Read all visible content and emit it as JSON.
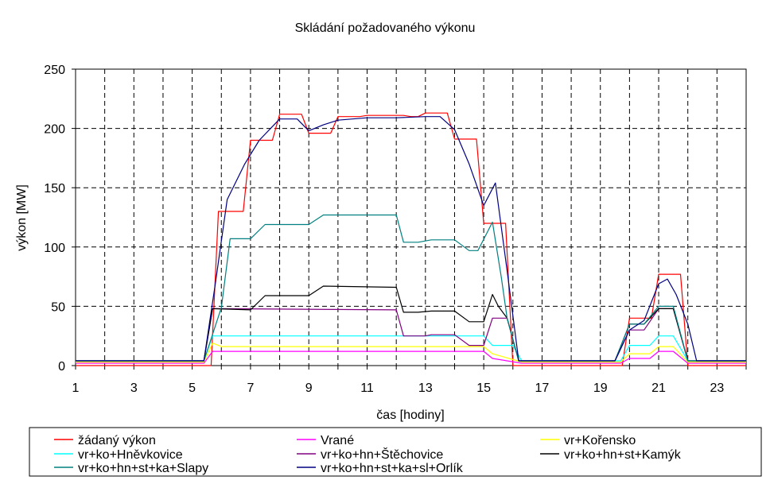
{
  "chart_data": {
    "type": "line",
    "title": "Skládání požadovaného výkonu",
    "xlabel": "čas [hodiny]",
    "ylabel": "výkon [MW]",
    "xlim": [
      1,
      24
    ],
    "ylim": [
      0,
      250
    ],
    "x_ticks": [
      1,
      3,
      5,
      7,
      9,
      11,
      13,
      15,
      17,
      19,
      21,
      23
    ],
    "y_ticks": [
      0,
      50,
      100,
      150,
      200,
      250
    ],
    "grid": true,
    "legend_position": "bottom",
    "series": [
      {
        "name": "žádaný výkon",
        "color": "#ff0000",
        "points": [
          [
            1,
            0
          ],
          [
            5.6,
            0
          ],
          [
            5.65,
            0
          ],
          [
            5.9,
            130
          ],
          [
            6.5,
            130
          ],
          [
            6.75,
            130
          ],
          [
            7,
            190
          ],
          [
            7.5,
            190
          ],
          [
            7.75,
            190
          ],
          [
            8,
            212
          ],
          [
            8.5,
            212
          ],
          [
            8.75,
            212
          ],
          [
            9,
            196
          ],
          [
            9.5,
            196
          ],
          [
            9.75,
            196
          ],
          [
            10,
            210
          ],
          [
            10.5,
            210
          ],
          [
            10.75,
            210
          ],
          [
            11,
            211
          ],
          [
            12,
            211
          ],
          [
            12.25,
            211
          ],
          [
            12.5,
            210
          ],
          [
            12.75,
            210
          ],
          [
            13,
            213
          ],
          [
            13.5,
            213
          ],
          [
            13.75,
            213
          ],
          [
            14,
            191
          ],
          [
            14.5,
            191
          ],
          [
            14.75,
            191
          ],
          [
            15,
            120
          ],
          [
            15.5,
            120
          ],
          [
            15.75,
            120
          ],
          [
            16,
            0
          ],
          [
            19.5,
            0
          ],
          [
            19.75,
            0
          ],
          [
            20,
            40
          ],
          [
            20.5,
            40
          ],
          [
            20.75,
            40
          ],
          [
            21,
            77
          ],
          [
            21.5,
            77
          ],
          [
            21.75,
            77
          ],
          [
            22,
            0
          ],
          [
            24,
            0
          ]
        ]
      },
      {
        "name": "Vrané",
        "color": "#ff00ff",
        "points": [
          [
            1,
            2
          ],
          [
            5.4,
            2
          ],
          [
            5.7,
            12
          ],
          [
            15,
            12
          ],
          [
            15.3,
            6
          ],
          [
            16.3,
            2
          ],
          [
            19.7,
            2
          ],
          [
            20,
            6
          ],
          [
            20.7,
            6
          ],
          [
            21,
            12
          ],
          [
            21.5,
            12
          ],
          [
            22,
            2
          ],
          [
            24,
            2
          ]
        ]
      },
      {
        "name": "vr+Kořensko",
        "color": "#ffff00",
        "points": [
          [
            1,
            3
          ],
          [
            5.4,
            3
          ],
          [
            5.7,
            19
          ],
          [
            6,
            16
          ],
          [
            15,
            16
          ],
          [
            15.3,
            10
          ],
          [
            16.3,
            3
          ],
          [
            19.7,
            3
          ],
          [
            20,
            10
          ],
          [
            20.7,
            10
          ],
          [
            21,
            16
          ],
          [
            21.5,
            16
          ],
          [
            22,
            3
          ],
          [
            24,
            3
          ]
        ]
      },
      {
        "name": "vr+ko+Hněvkovice",
        "color": "#00ffff",
        "points": [
          [
            1,
            4
          ],
          [
            5.4,
            4
          ],
          [
            5.7,
            25
          ],
          [
            15,
            25
          ],
          [
            15.3,
            17
          ],
          [
            16,
            17
          ],
          [
            16.3,
            4
          ],
          [
            19.7,
            4
          ],
          [
            20,
            17
          ],
          [
            20.7,
            17
          ],
          [
            21,
            25
          ],
          [
            21.5,
            25
          ],
          [
            22,
            4
          ],
          [
            24,
            4
          ]
        ]
      },
      {
        "name": "vr+ko+hn+Štěchovice",
        "color": "#800080",
        "points": [
          [
            1,
            4
          ],
          [
            5.4,
            4
          ],
          [
            5.7,
            48
          ],
          [
            6,
            48
          ],
          [
            12,
            47
          ],
          [
            12.25,
            25
          ],
          [
            13,
            25
          ],
          [
            13.2,
            26
          ],
          [
            14,
            26
          ],
          [
            14.5,
            17
          ],
          [
            15,
            17
          ],
          [
            15.3,
            40
          ],
          [
            15.8,
            40
          ],
          [
            16.2,
            4
          ],
          [
            19.5,
            4
          ],
          [
            20,
            30
          ],
          [
            20.5,
            30
          ],
          [
            21,
            48
          ],
          [
            21.5,
            48
          ],
          [
            22,
            4
          ],
          [
            24,
            4
          ]
        ]
      },
      {
        "name": "vr+ko+hn+st+Kamýk",
        "color": "#000000",
        "points": [
          [
            1,
            4
          ],
          [
            5.4,
            4
          ],
          [
            5.7,
            48
          ],
          [
            7,
            47
          ],
          [
            7.5,
            59
          ],
          [
            9,
            59
          ],
          [
            9.5,
            67
          ],
          [
            12,
            66
          ],
          [
            12.25,
            45
          ],
          [
            12.75,
            45
          ],
          [
            13.2,
            46
          ],
          [
            14,
            46
          ],
          [
            14.5,
            37
          ],
          [
            15,
            37
          ],
          [
            15.3,
            60
          ],
          [
            15.5,
            50
          ],
          [
            15.8,
            40
          ],
          [
            16.2,
            4
          ],
          [
            19.5,
            4
          ],
          [
            20,
            35
          ],
          [
            20.5,
            35
          ],
          [
            21,
            48
          ],
          [
            21.5,
            48
          ],
          [
            22,
            4
          ],
          [
            24,
            4
          ]
        ]
      },
      {
        "name": "vr+ko+hn+st+ka+Slapy",
        "color": "#008080",
        "points": [
          [
            1,
            4
          ],
          [
            5.4,
            4
          ],
          [
            6,
            49
          ],
          [
            6.3,
            107
          ],
          [
            7,
            107
          ],
          [
            7.5,
            119
          ],
          [
            9,
            119
          ],
          [
            9.5,
            127
          ],
          [
            12,
            127
          ],
          [
            12.25,
            104
          ],
          [
            12.75,
            104
          ],
          [
            13.2,
            106
          ],
          [
            14,
            106
          ],
          [
            14.5,
            97
          ],
          [
            14.8,
            97
          ],
          [
            15.3,
            121
          ],
          [
            15.6,
            75
          ],
          [
            15.8,
            40
          ],
          [
            16.2,
            4
          ],
          [
            19.5,
            4
          ],
          [
            20,
            35
          ],
          [
            20.5,
            35
          ],
          [
            21,
            50
          ],
          [
            21.5,
            50
          ],
          [
            22,
            4
          ],
          [
            24,
            4
          ]
        ]
      },
      {
        "name": "vr+ko+hn+st+ka+sl+Orlík",
        "color": "#000080",
        "points": [
          [
            1,
            4
          ],
          [
            5.4,
            4
          ],
          [
            5.8,
            70
          ],
          [
            6.2,
            140
          ],
          [
            6.8,
            170
          ],
          [
            7.3,
            190
          ],
          [
            8,
            208
          ],
          [
            8.6,
            208
          ],
          [
            9,
            198
          ],
          [
            9.5,
            203
          ],
          [
            10,
            207
          ],
          [
            11,
            209
          ],
          [
            12,
            209
          ],
          [
            13,
            210
          ],
          [
            13.5,
            210
          ],
          [
            14,
            199
          ],
          [
            14.5,
            170
          ],
          [
            15,
            135
          ],
          [
            15.4,
            154
          ],
          [
            15.8,
            80
          ],
          [
            16.2,
            4
          ],
          [
            19.5,
            4
          ],
          [
            20,
            30
          ],
          [
            20.5,
            38
          ],
          [
            21,
            69
          ],
          [
            21.3,
            73
          ],
          [
            21.6,
            60
          ],
          [
            22,
            35
          ],
          [
            22.3,
            4
          ],
          [
            24,
            4
          ]
        ]
      }
    ]
  }
}
